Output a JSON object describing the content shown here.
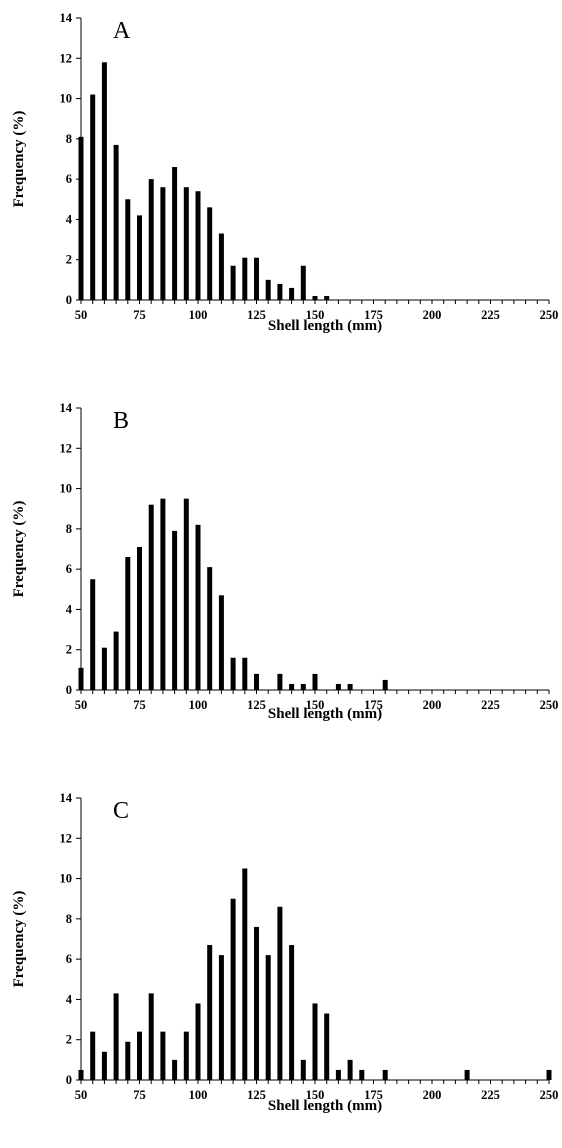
{
  "chart_data": [
    {
      "type": "bar",
      "panel_label": "A",
      "xlabel": "Shell length (mm)",
      "ylabel": "Frequency (%)",
      "ylim": [
        0,
        14
      ],
      "yticks": [
        0,
        2,
        4,
        6,
        8,
        10,
        12,
        14
      ],
      "xlim": [
        50,
        250
      ],
      "xticks": [
        50,
        75,
        100,
        125,
        150,
        175,
        200,
        225,
        250
      ],
      "bar_color": "#000000",
      "x": [
        50,
        55,
        60,
        65,
        70,
        75,
        80,
        85,
        90,
        95,
        100,
        105,
        110,
        115,
        120,
        125,
        130,
        135,
        140,
        145,
        150,
        155
      ],
      "values": [
        8.1,
        10.2,
        11.8,
        7.7,
        5.0,
        4.2,
        6.0,
        5.6,
        6.6,
        5.6,
        5.4,
        4.6,
        3.3,
        1.7,
        2.1,
        2.1,
        1.0,
        0.8,
        0.6,
        1.7,
        0.2,
        0.2
      ]
    },
    {
      "type": "bar",
      "panel_label": "B",
      "xlabel": "Shell length (mm)",
      "ylabel": "Frequency (%)",
      "ylim": [
        0,
        14
      ],
      "yticks": [
        0,
        2,
        4,
        6,
        8,
        10,
        12,
        14
      ],
      "xlim": [
        50,
        250
      ],
      "xticks": [
        50,
        75,
        100,
        125,
        150,
        175,
        200,
        225,
        250
      ],
      "bar_color": "#000000",
      "x": [
        50,
        55,
        60,
        65,
        70,
        75,
        80,
        85,
        90,
        95,
        100,
        105,
        110,
        115,
        120,
        125,
        135,
        140,
        145,
        150,
        160,
        165,
        180
      ],
      "values": [
        1.1,
        5.5,
        2.1,
        2.9,
        6.6,
        7.1,
        9.2,
        9.5,
        7.9,
        9.5,
        8.2,
        6.1,
        4.7,
        1.6,
        1.6,
        0.8,
        0.8,
        0.3,
        0.3,
        0.8,
        0.3,
        0.3,
        0.5
      ]
    },
    {
      "type": "bar",
      "panel_label": "C",
      "xlabel": "Shell length (mm)",
      "ylabel": "Frequency (%)",
      "ylim": [
        0,
        14
      ],
      "yticks": [
        0,
        2,
        4,
        6,
        8,
        10,
        12,
        14
      ],
      "xlim": [
        50,
        250
      ],
      "xticks": [
        50,
        75,
        100,
        125,
        150,
        175,
        200,
        225,
        250
      ],
      "bar_color": "#000000",
      "x": [
        50,
        55,
        60,
        65,
        70,
        75,
        80,
        85,
        90,
        95,
        100,
        105,
        110,
        115,
        120,
        125,
        130,
        135,
        140,
        145,
        150,
        155,
        160,
        165,
        170,
        180,
        215,
        250
      ],
      "values": [
        0.5,
        2.4,
        1.4,
        4.3,
        1.9,
        2.4,
        4.3,
        2.4,
        1.0,
        2.4,
        3.8,
        6.7,
        6.2,
        9.0,
        10.5,
        7.6,
        6.2,
        8.6,
        6.7,
        1.0,
        3.8,
        3.3,
        0.5,
        1.0,
        0.5,
        0.5,
        0.5,
        0.5
      ]
    }
  ]
}
